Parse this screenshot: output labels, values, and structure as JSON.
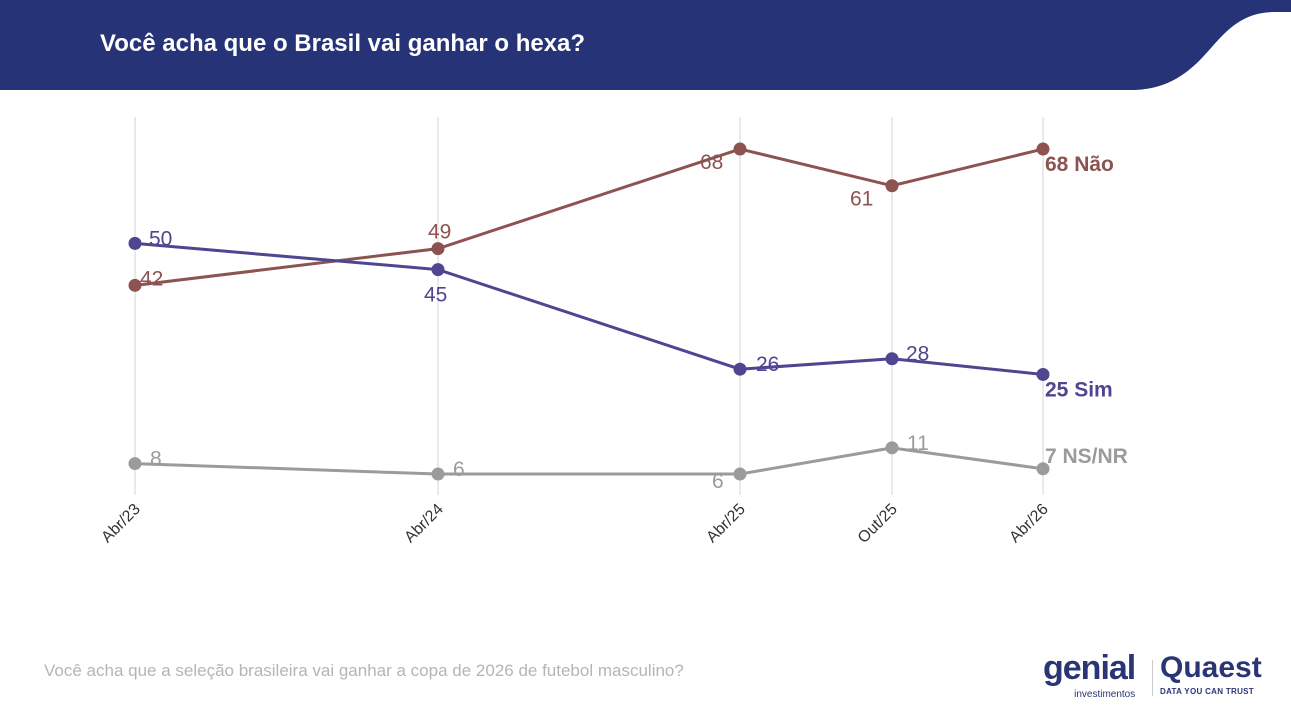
{
  "header": {
    "title": "Você acha que o Brasil vai ganhar o hexa?",
    "color": "#263377"
  },
  "footer": {
    "question": "Você acha que a seleção brasileira vai ganhar a copa de 2026 de futebol masculino?"
  },
  "logos": {
    "genial": "genial",
    "genial_sub": "investimentos",
    "quaest": "Quaest",
    "quaest_tagline": "DATA YOU CAN TRUST"
  },
  "chart_data": {
    "type": "line",
    "categories": [
      "Abr/23",
      "Abr/24",
      "Abr/25",
      "Out/25",
      "Abr/26"
    ],
    "grid": "vertical",
    "series": [
      {
        "name": "Não",
        "color": "#8c5350",
        "values": [
          42,
          49,
          68,
          61,
          68
        ],
        "end_label": "68 Não"
      },
      {
        "name": "Sim",
        "color": "#4e4690",
        "values": [
          50,
          45,
          26,
          28,
          25
        ],
        "end_label": "25 Sim"
      },
      {
        "name": "NS/NR",
        "color": "#9b9b9b",
        "values": [
          8,
          6,
          6,
          11,
          7
        ],
        "end_label": "7 NS/NR"
      }
    ]
  }
}
